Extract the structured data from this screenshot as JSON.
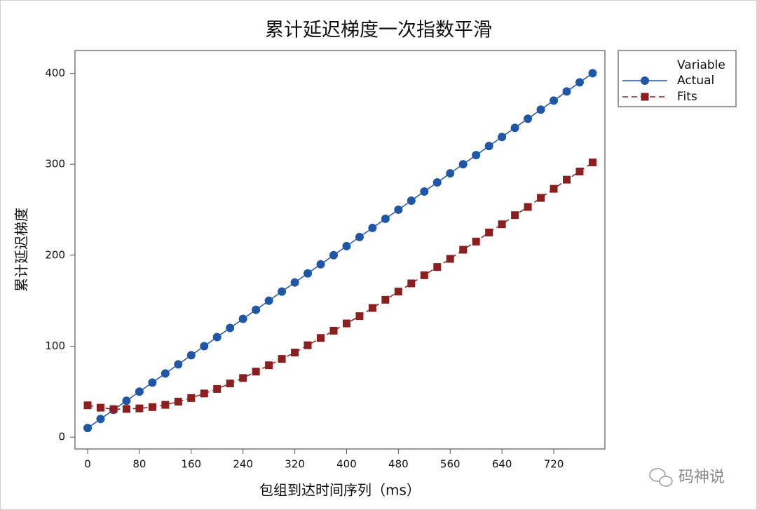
{
  "chart_data": {
    "type": "line",
    "title": "累计延迟梯度一次指数平滑",
    "x_label": "包组到达时间序列（ms）",
    "y_label": "累计延迟梯度",
    "legend_title": "Variable",
    "legend_position": "outside-right",
    "grid": false,
    "x": [
      0,
      20,
      40,
      60,
      80,
      100,
      120,
      140,
      160,
      180,
      200,
      220,
      240,
      260,
      280,
      300,
      320,
      340,
      360,
      380,
      400,
      420,
      440,
      460,
      480,
      500,
      520,
      540,
      560,
      580,
      600,
      620,
      640,
      660,
      680,
      700,
      720,
      740,
      760,
      780
    ],
    "series": [
      {
        "name": "Actual",
        "color": "#1f56a6",
        "marker": "circle",
        "dash": "solid",
        "values": [
          10,
          20,
          30,
          40,
          50,
          60,
          70,
          80,
          90,
          100,
          110,
          120,
          130,
          140,
          150,
          160,
          170,
          180,
          190,
          200,
          210,
          220,
          230,
          240,
          250,
          260,
          270,
          280,
          290,
          300,
          310,
          320,
          330,
          340,
          350,
          360,
          370,
          380,
          390,
          400
        ]
      },
      {
        "name": "Fits",
        "color": "#8b1e1e",
        "marker": "square",
        "dash": "dashed",
        "values": [
          35,
          32.4,
          30.8,
          31,
          31.6,
          33,
          35.5,
          39,
          43,
          48,
          53,
          59,
          65,
          72,
          79,
          86,
          93,
          101,
          109,
          117,
          125,
          133,
          142,
          151,
          160,
          169,
          178,
          187,
          196,
          206,
          215,
          225,
          234,
          244,
          253,
          263,
          273,
          283,
          292,
          302
        ]
      }
    ],
    "xlim": [
      -19.5,
      799
    ],
    "ylim": [
      -13,
      425
    ],
    "xticks": [
      0,
      80,
      160,
      240,
      320,
      400,
      480,
      560,
      640,
      720
    ],
    "yticks": [
      0,
      100,
      200,
      300,
      400
    ],
    "watermark": "码神说"
  }
}
